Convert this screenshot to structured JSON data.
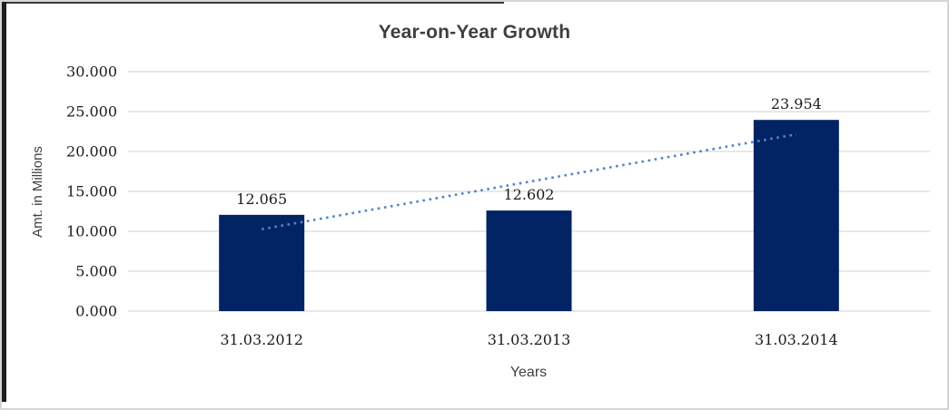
{
  "chart_data": {
    "type": "bar",
    "title": "Year-on-Year Growth",
    "xlabel": "Years",
    "ylabel": "Amt. in Millions",
    "categories": [
      "31.03.2012",
      "31.03.2013",
      "31.03.2014"
    ],
    "values": [
      12.065,
      12.602,
      23.954
    ],
    "data_labels": [
      "12.065",
      "12.602",
      "23.954"
    ],
    "ylim": [
      0,
      30
    ],
    "yticks": [
      0,
      5,
      10,
      15,
      20,
      25,
      30
    ],
    "ytick_labels": [
      "0.000",
      "5.000",
      "10.000",
      "15.000",
      "20.000",
      "25.000",
      "30.000"
    ],
    "grid": true,
    "legend": "none",
    "bar_color": "#022364",
    "trendline": {
      "type": "linear",
      "style": "dotted",
      "color": "#4E87C8"
    },
    "colors": {
      "gridline": "#D9D9D9",
      "axis_line": "#D9D9D9",
      "title_text": "#3F3F3F",
      "tick_text": "#1C1C1C",
      "frame_border_dark": "#1F1F1F",
      "frame_border_light": "#D6D6D6"
    }
  }
}
